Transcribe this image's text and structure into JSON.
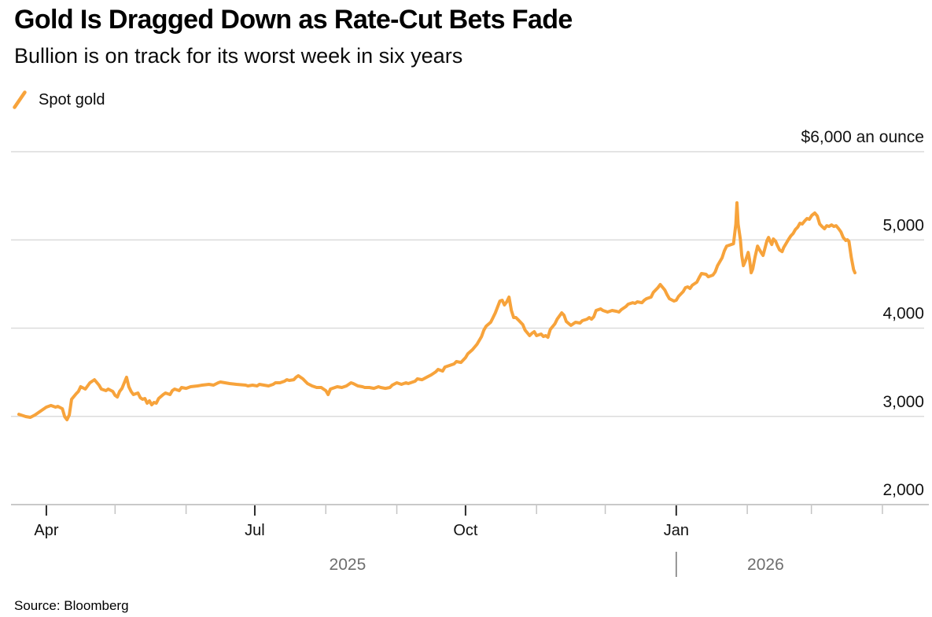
{
  "header": {
    "title": "Gold Is Dragged Down as Rate-Cut Bets Fade",
    "subtitle": "Bullion is on track for its worst week in six years"
  },
  "legend": {
    "label": "Spot gold",
    "icon": "orange-slash-icon"
  },
  "source": {
    "text": "Source: Bloomberg"
  },
  "colors": {
    "line": "#F7A33B",
    "grid": "#DCDCDC",
    "axis": "#C9C9C9",
    "tick_major": "#2B2B2B",
    "tick_minor": "#C4C4C4",
    "label_text": "#111111",
    "year_text": "#6E6E6E",
    "year_separator": "#757575"
  },
  "chart_data": {
    "type": "line",
    "title": "Gold Is Dragged Down as Rate-Cut Bets Fade",
    "subtitle": "Bullion is on track for its worst week in six years",
    "unit_label": "$6,000 an ounce",
    "grid": true,
    "legend_position": "top-left",
    "x_axis": {
      "start_date": "2025-03-20",
      "end_date": "2026-03-20",
      "day_min": 0,
      "day_max": 365,
      "months": [
        {
          "day": 12,
          "label": "Apr",
          "major": true
        },
        {
          "day": 42,
          "label": "",
          "major": false
        },
        {
          "day": 73,
          "label": "",
          "major": false
        },
        {
          "day": 103,
          "label": "Jul",
          "major": true
        },
        {
          "day": 134,
          "label": "",
          "major": false
        },
        {
          "day": 165,
          "label": "",
          "major": false
        },
        {
          "day": 195,
          "label": "Oct",
          "major": true
        },
        {
          "day": 226,
          "label": "",
          "major": false
        },
        {
          "day": 256,
          "label": "",
          "major": false
        },
        {
          "day": 287,
          "label": "Jan",
          "major": true
        },
        {
          "day": 318,
          "label": "",
          "major": false
        },
        {
          "day": 346,
          "label": "",
          "major": false
        },
        {
          "day": 377,
          "label": "",
          "major": false
        }
      ],
      "years": [
        {
          "label": "2025",
          "from_day": 0,
          "to_day": 287,
          "separator": false
        },
        {
          "label": "2026",
          "from_day": 287,
          "to_day": 365,
          "separator": true
        }
      ]
    },
    "y_axis": {
      "min": 2000,
      "max": 6000,
      "ticks": [
        {
          "value": 6000,
          "label": "$6,000 an ounce",
          "gridline": true
        },
        {
          "value": 5000,
          "label": "5,000",
          "gridline": true
        },
        {
          "value": 4000,
          "label": "4,000",
          "gridline": true
        },
        {
          "value": 3000,
          "label": "3,000",
          "gridline": true
        },
        {
          "value": 2000,
          "label": "2,000",
          "gridline": false
        }
      ]
    },
    "series": [
      {
        "name": "Spot gold",
        "color": "#F7A33B",
        "points": [
          [
            0,
            3024
          ],
          [
            3,
            2998
          ],
          [
            5,
            2989
          ],
          [
            7,
            3016
          ],
          [
            10,
            3069
          ],
          [
            12,
            3105
          ],
          [
            14,
            3123
          ],
          [
            16,
            3105
          ],
          [
            17,
            3114
          ],
          [
            19,
            3087
          ],
          [
            20,
            2998
          ],
          [
            21,
            2962
          ],
          [
            22,
            3016
          ],
          [
            23,
            3194
          ],
          [
            25,
            3256
          ],
          [
            26,
            3283
          ],
          [
            27,
            3336
          ],
          [
            29,
            3310
          ],
          [
            31,
            3381
          ],
          [
            33,
            3416
          ],
          [
            35,
            3354
          ],
          [
            36,
            3310
          ],
          [
            38,
            3292
          ],
          [
            39,
            3310
          ],
          [
            41,
            3283
          ],
          [
            42,
            3238
          ],
          [
            43,
            3220
          ],
          [
            44,
            3283
          ],
          [
            45,
            3318
          ],
          [
            47,
            3443
          ],
          [
            48,
            3336
          ],
          [
            49,
            3283
          ],
          [
            50,
            3247
          ],
          [
            52,
            3265
          ],
          [
            53,
            3212
          ],
          [
            54,
            3194
          ],
          [
            55,
            3203
          ],
          [
            56,
            3149
          ],
          [
            57,
            3176
          ],
          [
            58,
            3131
          ],
          [
            59,
            3158
          ],
          [
            60,
            3149
          ],
          [
            61,
            3203
          ],
          [
            63,
            3247
          ],
          [
            64,
            3265
          ],
          [
            66,
            3247
          ],
          [
            67,
            3292
          ],
          [
            68,
            3310
          ],
          [
            70,
            3292
          ],
          [
            71,
            3327
          ],
          [
            73,
            3318
          ],
          [
            75,
            3336
          ],
          [
            78,
            3345
          ],
          [
            80,
            3354
          ],
          [
            83,
            3363
          ],
          [
            85,
            3354
          ],
          [
            87,
            3381
          ],
          [
            88,
            3390
          ],
          [
            90,
            3381
          ],
          [
            92,
            3372
          ],
          [
            95,
            3363
          ],
          [
            99,
            3354
          ],
          [
            100,
            3345
          ],
          [
            102,
            3354
          ],
          [
            104,
            3345
          ],
          [
            105,
            3363
          ],
          [
            107,
            3354
          ],
          [
            109,
            3345
          ],
          [
            111,
            3363
          ],
          [
            112,
            3381
          ],
          [
            114,
            3381
          ],
          [
            116,
            3399
          ],
          [
            117,
            3416
          ],
          [
            118,
            3408
          ],
          [
            120,
            3416
          ],
          [
            121,
            3443
          ],
          [
            122,
            3461
          ],
          [
            124,
            3425
          ],
          [
            125,
            3399
          ],
          [
            126,
            3372
          ],
          [
            128,
            3345
          ],
          [
            130,
            3327
          ],
          [
            132,
            3327
          ],
          [
            133,
            3310
          ],
          [
            134,
            3292
          ],
          [
            135,
            3247
          ],
          [
            136,
            3310
          ],
          [
            138,
            3327
          ],
          [
            139,
            3336
          ],
          [
            141,
            3327
          ],
          [
            143,
            3345
          ],
          [
            145,
            3381
          ],
          [
            146,
            3372
          ],
          [
            148,
            3345
          ],
          [
            150,
            3336
          ],
          [
            151,
            3327
          ],
          [
            153,
            3327
          ],
          [
            155,
            3318
          ],
          [
            157,
            3336
          ],
          [
            158,
            3327
          ],
          [
            160,
            3318
          ],
          [
            162,
            3327
          ],
          [
            163,
            3354
          ],
          [
            165,
            3381
          ],
          [
            167,
            3363
          ],
          [
            169,
            3381
          ],
          [
            170,
            3372
          ],
          [
            173,
            3399
          ],
          [
            174,
            3425
          ],
          [
            176,
            3416
          ],
          [
            178,
            3443
          ],
          [
            180,
            3470
          ],
          [
            182,
            3505
          ],
          [
            183,
            3532
          ],
          [
            185,
            3514
          ],
          [
            186,
            3559
          ],
          [
            188,
            3577
          ],
          [
            190,
            3595
          ],
          [
            191,
            3621
          ],
          [
            193,
            3612
          ],
          [
            195,
            3666
          ],
          [
            196,
            3710
          ],
          [
            198,
            3755
          ],
          [
            200,
            3817
          ],
          [
            202,
            3906
          ],
          [
            203,
            3978
          ],
          [
            204,
            4022
          ],
          [
            206,
            4067
          ],
          [
            207,
            4120
          ],
          [
            208,
            4174
          ],
          [
            210,
            4307
          ],
          [
            211,
            4316
          ],
          [
            212,
            4263
          ],
          [
            213,
            4298
          ],
          [
            214,
            4352
          ],
          [
            215,
            4200
          ],
          [
            216,
            4120
          ],
          [
            217,
            4120
          ],
          [
            218,
            4094
          ],
          [
            220,
            4040
          ],
          [
            221,
            3978
          ],
          [
            223,
            3915
          ],
          [
            224,
            3942
          ],
          [
            225,
            3960
          ],
          [
            226,
            3915
          ],
          [
            228,
            3933
          ],
          [
            229,
            3906
          ],
          [
            230,
            3915
          ],
          [
            231,
            3897
          ],
          [
            232,
            3986
          ],
          [
            234,
            4049
          ],
          [
            235,
            4102
          ],
          [
            237,
            4174
          ],
          [
            238,
            4147
          ],
          [
            239,
            4076
          ],
          [
            241,
            4031
          ],
          [
            242,
            4049
          ],
          [
            243,
            4067
          ],
          [
            245,
            4058
          ],
          [
            246,
            4085
          ],
          [
            248,
            4102
          ],
          [
            249,
            4120
          ],
          [
            250,
            4102
          ],
          [
            251,
            4129
          ],
          [
            252,
            4200
          ],
          [
            254,
            4218
          ],
          [
            255,
            4200
          ],
          [
            257,
            4183
          ],
          [
            259,
            4200
          ],
          [
            261,
            4191
          ],
          [
            262,
            4183
          ],
          [
            263,
            4209
          ],
          [
            265,
            4245
          ],
          [
            266,
            4272
          ],
          [
            268,
            4289
          ],
          [
            269,
            4281
          ],
          [
            270,
            4298
          ],
          [
            272,
            4289
          ],
          [
            273,
            4316
          ],
          [
            274,
            4334
          ],
          [
            276,
            4352
          ],
          [
            277,
            4405
          ],
          [
            279,
            4459
          ],
          [
            280,
            4494
          ],
          [
            282,
            4432
          ],
          [
            283,
            4379
          ],
          [
            284,
            4334
          ],
          [
            286,
            4307
          ],
          [
            287,
            4316
          ],
          [
            288,
            4361
          ],
          [
            290,
            4414
          ],
          [
            291,
            4459
          ],
          [
            292,
            4468
          ],
          [
            293,
            4450
          ],
          [
            294,
            4486
          ],
          [
            296,
            4521
          ],
          [
            297,
            4574
          ],
          [
            298,
            4619
          ],
          [
            300,
            4610
          ],
          [
            301,
            4583
          ],
          [
            303,
            4601
          ],
          [
            304,
            4637
          ],
          [
            305,
            4708
          ],
          [
            307,
            4797
          ],
          [
            308,
            4877
          ],
          [
            309,
            4930
          ],
          [
            311,
            4948
          ],
          [
            312,
            4957
          ],
          [
            313,
            5180
          ],
          [
            313.5,
            5421
          ],
          [
            314,
            5180
          ],
          [
            315,
            5002
          ],
          [
            315.6,
            4824
          ],
          [
            316.3,
            4708
          ],
          [
            317.3,
            4770
          ],
          [
            318.4,
            4859
          ],
          [
            319,
            4779
          ],
          [
            319.7,
            4628
          ],
          [
            320.4,
            4672
          ],
          [
            321.4,
            4806
          ],
          [
            322.5,
            4930
          ],
          [
            323.2,
            4895
          ],
          [
            324.2,
            4851
          ],
          [
            324.9,
            4824
          ],
          [
            325.6,
            4895
          ],
          [
            326.6,
            4993
          ],
          [
            327.3,
            5028
          ],
          [
            328,
            4984
          ],
          [
            328.7,
            4948
          ],
          [
            329.4,
            5011
          ],
          [
            330.4,
            4984
          ],
          [
            331.1,
            4939
          ],
          [
            332.1,
            4886
          ],
          [
            333.2,
            4868
          ],
          [
            333.9,
            4913
          ],
          [
            334.9,
            4957
          ],
          [
            335.9,
            5002
          ],
          [
            337,
            5046
          ],
          [
            338,
            5073
          ],
          [
            339,
            5118
          ],
          [
            340,
            5144
          ],
          [
            341,
            5189
          ],
          [
            342,
            5180
          ],
          [
            343.1,
            5216
          ],
          [
            344.1,
            5243
          ],
          [
            345.1,
            5234
          ],
          [
            346.2,
            5278
          ],
          [
            347.5,
            5305
          ],
          [
            348.6,
            5270
          ],
          [
            349.6,
            5180
          ],
          [
            350.6,
            5153
          ],
          [
            351.7,
            5127
          ],
          [
            352.7,
            5162
          ],
          [
            353.7,
            5153
          ],
          [
            354.8,
            5171
          ],
          [
            355.8,
            5153
          ],
          [
            356.8,
            5162
          ],
          [
            357.9,
            5127
          ],
          [
            358.9,
            5091
          ],
          [
            359.9,
            5028
          ],
          [
            361,
            4993
          ],
          [
            361.7,
            5002
          ],
          [
            362.4,
            4984
          ],
          [
            363.4,
            4806
          ],
          [
            364.4,
            4664
          ],
          [
            365,
            4628
          ]
        ]
      }
    ]
  }
}
